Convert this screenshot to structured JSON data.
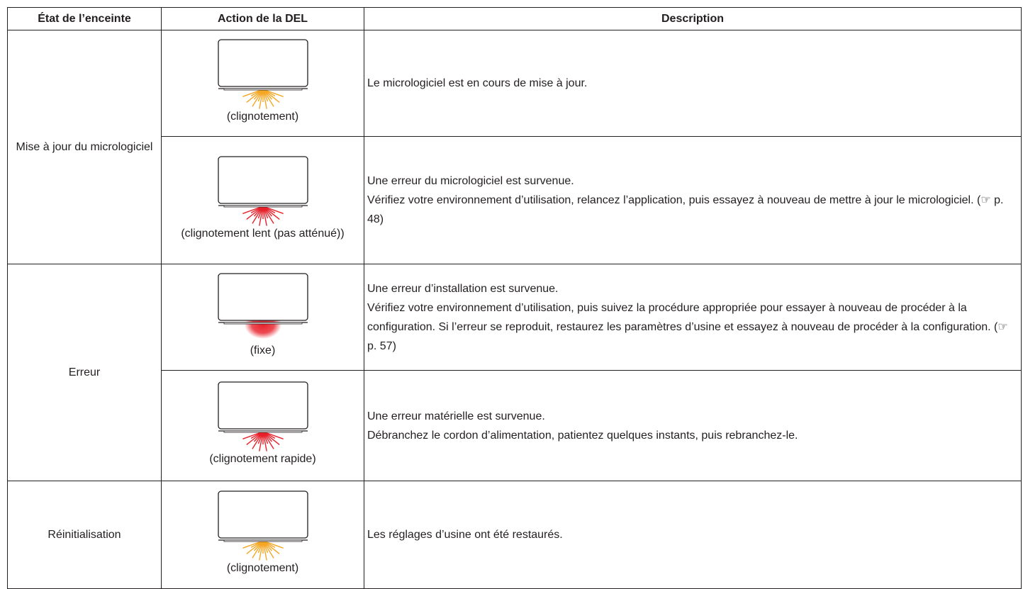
{
  "table": {
    "headers": [
      "État de l’enceinte",
      "Action de la DEL",
      "Description"
    ],
    "groups": [
      {
        "state": "Mise à jour du micrologiciel",
        "rows": [
          {
            "led_label": "(clignotement)",
            "led": {
              "color": "#f5a623",
              "style": "rays"
            },
            "description": [
              "Le micrologiciel est en cours de mise à jour."
            ]
          },
          {
            "led_label": "(clignotement lent (pas atténué))",
            "led": {
              "color": "#e8202a",
              "style": "rays"
            },
            "description": [
              "Une erreur du micrologiciel est survenue.",
              "Vérifiez votre environnement d’utilisation, relancez l’application, puis essayez à nouveau de mettre à jour le micrologiciel.  (☞ p. 48)"
            ]
          }
        ]
      },
      {
        "state": "Erreur",
        "rows": [
          {
            "led_label": "(fixe)",
            "led": {
              "color": "#e8202a",
              "style": "glow"
            },
            "description": [
              "Une erreur d’installation est survenue.",
              "Vérifiez votre environnement d’utilisation, puis suivez la procédure appropriée pour essayer à nouveau de procéder à la configuration. Si l’erreur se reproduit, restaurez les paramètres d’usine et essayez à nouveau de procéder à la configuration.  (☞ p. 57)"
            ]
          },
          {
            "led_label": "(clignotement rapide)",
            "led": {
              "color": "#e8202a",
              "style": "rays"
            },
            "description": [
              "Une erreur matérielle est survenue.",
              "Débranchez le cordon d’alimentation, patientez quelques instants, puis rebranchez-le."
            ]
          }
        ]
      },
      {
        "state": "Réinitialisation",
        "rows": [
          {
            "led_label": "(clignotement)",
            "led": {
              "color": "#f5a623",
              "style": "rays"
            },
            "description": [
              "Les réglages d’usine ont été restaurés."
            ]
          }
        ]
      }
    ]
  }
}
